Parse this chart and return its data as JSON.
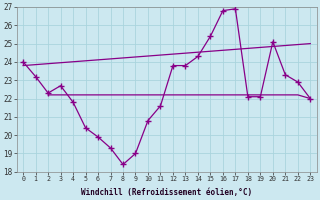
{
  "background_color": "#cce8f0",
  "grid_color": "#aad4dd",
  "line_color": "#880088",
  "xlabel": "Windchill (Refroidissement éolien,°C)",
  "xlim": [
    -0.5,
    23.5
  ],
  "ylim": [
    18,
    27
  ],
  "yticks": [
    18,
    19,
    20,
    21,
    22,
    23,
    24,
    25,
    26,
    27
  ],
  "xticks": [
    0,
    1,
    2,
    3,
    4,
    5,
    6,
    7,
    8,
    9,
    10,
    11,
    12,
    13,
    14,
    15,
    16,
    17,
    18,
    19,
    20,
    21,
    22,
    23
  ],
  "line1_x": [
    0,
    1,
    2,
    3,
    4,
    5,
    6,
    7,
    8,
    9,
    10,
    11,
    12,
    13,
    14,
    15,
    16,
    17,
    18,
    19,
    20,
    21,
    22,
    23
  ],
  "line1_y": [
    24.0,
    23.2,
    22.3,
    22.7,
    21.8,
    20.4,
    19.9,
    19.3,
    18.4,
    19.0,
    20.8,
    21.6,
    23.8,
    23.8,
    24.3,
    25.4,
    26.8,
    26.9,
    22.1,
    22.1,
    25.1,
    23.3,
    22.9,
    22.0
  ],
  "line2_x": [
    0,
    23
  ],
  "line2_y": [
    23.8,
    25.0
  ],
  "line3_x": [
    2,
    3,
    4,
    5,
    6,
    7,
    8,
    9,
    10,
    11,
    12,
    13,
    14,
    15,
    16,
    17,
    18,
    19,
    20,
    21,
    22,
    23
  ],
  "line3_y": [
    22.2,
    22.2,
    22.2,
    22.2,
    22.2,
    22.2,
    22.2,
    22.2,
    22.2,
    22.2,
    22.2,
    22.2,
    22.2,
    22.2,
    22.2,
    22.2,
    22.2,
    22.2,
    22.2,
    22.2,
    22.2,
    22.0
  ]
}
